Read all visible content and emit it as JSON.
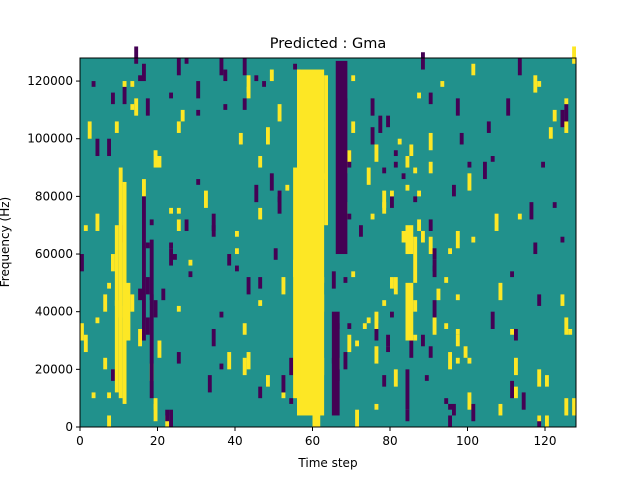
{
  "chart_data": {
    "type": "heatmap",
    "title": "Predicted : Gma",
    "xlabel": "Time step",
    "ylabel": "Frequency (Hz)",
    "xlim": [
      0,
      128
    ],
    "ylim": [
      0,
      128000
    ],
    "x_ticks": [
      0,
      20,
      40,
      60,
      80,
      100,
      120
    ],
    "x_tick_labels": [
      "0",
      "20",
      "40",
      "60",
      "80",
      "100",
      "120"
    ],
    "y_ticks": [
      0,
      20000,
      40000,
      60000,
      80000,
      100000,
      120000
    ],
    "y_tick_labels": [
      "0",
      "20000",
      "40000",
      "60000",
      "80000",
      "100000",
      "120000"
    ],
    "grid": false,
    "colormap": "viridis",
    "values_legend": {
      "-1": "#440154",
      "0": "#21918c",
      "1": "#fde725"
    },
    "grid_size": {
      "time_steps": 128,
      "frequency_bins": 128
    },
    "description_of_values": "3-level prediction mask: 0 = background (teal), 1 = yellow, -1 = dark purple",
    "cells": {
      "yellow": [
        [
          56,
          63,
          4000,
          124000
        ],
        [
          55,
          57,
          10000,
          90000
        ],
        [
          60,
          62,
          0,
          6000
        ],
        [
          63,
          64,
          70000,
          122000
        ],
        [
          10,
          11,
          10000,
          90000
        ],
        [
          11,
          12,
          8000,
          85000
        ],
        [
          12,
          13,
          30000,
          50000
        ],
        [
          9,
          10,
          12000,
          70000
        ],
        [
          84,
          86,
          60000,
          70000
        ],
        [
          84,
          86,
          30000,
          50000
        ],
        [
          86,
          87,
          50000,
          66000
        ]
      ],
      "purple": [
        [
          66,
          69,
          60000,
          127000
        ],
        [
          65,
          67,
          4000,
          40000
        ],
        [
          18,
          19,
          10000,
          65000
        ],
        [
          16,
          17,
          30000,
          80000
        ],
        [
          84,
          85,
          6000,
          20000
        ]
      ],
      "scatter_density": 0.035,
      "scatter_seed": 7
    }
  }
}
